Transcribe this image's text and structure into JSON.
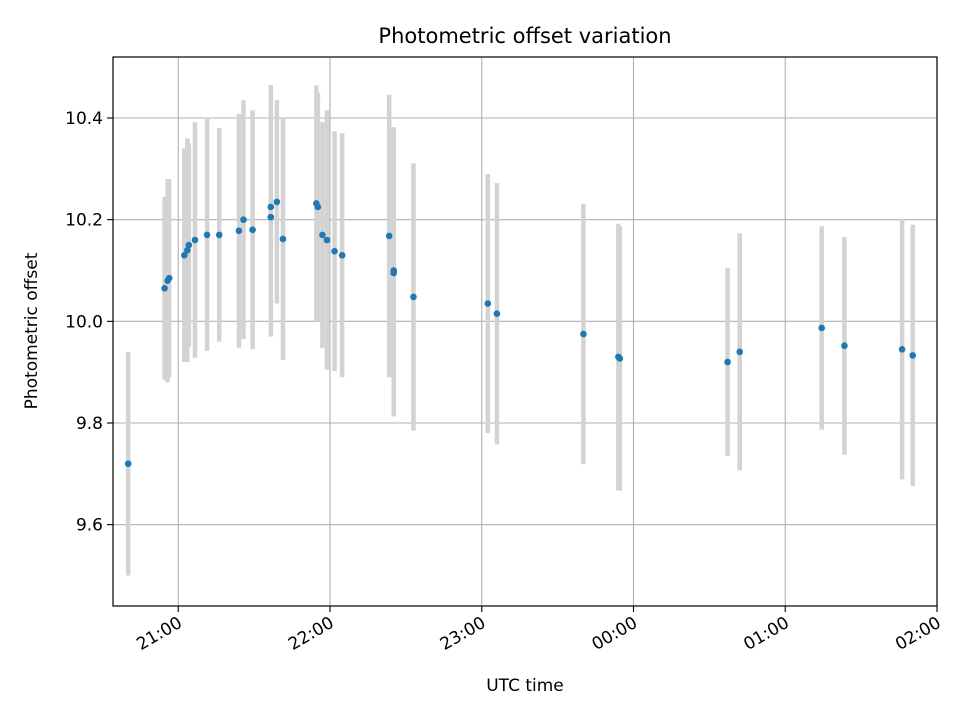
{
  "chart_data": {
    "type": "scatter",
    "title": "Photometric offset variation",
    "xlabel": "UTC time",
    "ylabel": "Photometric offset",
    "x_unit": "hours (UTC, continuous past midnight)",
    "xlim": [
      20.57,
      26.0
    ],
    "ylim": [
      9.44,
      10.52
    ],
    "x_ticks": [
      {
        "value": 21,
        "label": "21:00"
      },
      {
        "value": 22,
        "label": "22:00"
      },
      {
        "value": 23,
        "label": "23:00"
      },
      {
        "value": 24,
        "label": "00:00"
      },
      {
        "value": 25,
        "label": "01:00"
      },
      {
        "value": 26,
        "label": "02:00"
      }
    ],
    "y_ticks": [
      {
        "value": 9.6,
        "label": "9.6"
      },
      {
        "value": 9.8,
        "label": "9.8"
      },
      {
        "value": 10.0,
        "label": "10.0"
      },
      {
        "value": 10.2,
        "label": "10.2"
      },
      {
        "value": 10.4,
        "label": "10.4"
      }
    ],
    "grid": true,
    "colors": {
      "point": "#1f77b4",
      "errorbar": "#d3d3d3",
      "grid": "#b0b0b0"
    },
    "series": [
      {
        "points": [
          {
            "x": 20.67,
            "y": 9.72,
            "err": 0.22
          },
          {
            "x": 20.91,
            "y": 10.065,
            "err": 0.18
          },
          {
            "x": 20.93,
            "y": 10.08,
            "err": 0.2
          },
          {
            "x": 20.94,
            "y": 10.085,
            "err": 0.195
          },
          {
            "x": 21.04,
            "y": 10.13,
            "err": 0.21
          },
          {
            "x": 21.06,
            "y": 10.14,
            "err": 0.22
          },
          {
            "x": 21.07,
            "y": 10.15,
            "err": 0.2
          },
          {
            "x": 21.11,
            "y": 10.16,
            "err": 0.232
          },
          {
            "x": 21.19,
            "y": 10.17,
            "err": 0.228
          },
          {
            "x": 21.27,
            "y": 10.17,
            "err": 0.21
          },
          {
            "x": 21.4,
            "y": 10.178,
            "err": 0.23
          },
          {
            "x": 21.43,
            "y": 10.2,
            "err": 0.235
          },
          {
            "x": 21.49,
            "y": 10.18,
            "err": 0.235
          },
          {
            "x": 21.61,
            "y": 10.225,
            "err": 0.24
          },
          {
            "x": 21.61,
            "y": 10.205,
            "err": 0.235
          },
          {
            "x": 21.65,
            "y": 10.235,
            "err": 0.2
          },
          {
            "x": 21.69,
            "y": 10.162,
            "err": 0.238
          },
          {
            "x": 21.91,
            "y": 10.232,
            "err": 0.232
          },
          {
            "x": 21.92,
            "y": 10.225,
            "err": 0.225
          },
          {
            "x": 21.95,
            "y": 10.17,
            "err": 0.222
          },
          {
            "x": 21.98,
            "y": 10.16,
            "err": 0.255
          },
          {
            "x": 22.03,
            "y": 10.138,
            "err": 0.236
          },
          {
            "x": 22.08,
            "y": 10.13,
            "err": 0.24
          },
          {
            "x": 22.39,
            "y": 10.168,
            "err": 0.278
          },
          {
            "x": 22.42,
            "y": 10.1,
            "err": 0.282
          },
          {
            "x": 22.42,
            "y": 10.095,
            "err": 0.282
          },
          {
            "x": 22.55,
            "y": 10.048,
            "err": 0.263
          },
          {
            "x": 23.04,
            "y": 10.035,
            "err": 0.255
          },
          {
            "x": 23.1,
            "y": 10.015,
            "err": 0.257
          },
          {
            "x": 23.67,
            "y": 9.975,
            "err": 0.256
          },
          {
            "x": 23.9,
            "y": 9.93,
            "err": 0.262
          },
          {
            "x": 23.91,
            "y": 9.927,
            "err": 0.26
          },
          {
            "x": 24.62,
            "y": 9.92,
            "err": 0.185
          },
          {
            "x": 24.7,
            "y": 9.94,
            "err": 0.233
          },
          {
            "x": 25.24,
            "y": 9.987,
            "err": 0.2
          },
          {
            "x": 25.39,
            "y": 9.952,
            "err": 0.214
          },
          {
            "x": 25.77,
            "y": 9.945,
            "err": 0.256
          },
          {
            "x": 25.84,
            "y": 9.933,
            "err": 0.257
          }
        ]
      }
    ]
  }
}
